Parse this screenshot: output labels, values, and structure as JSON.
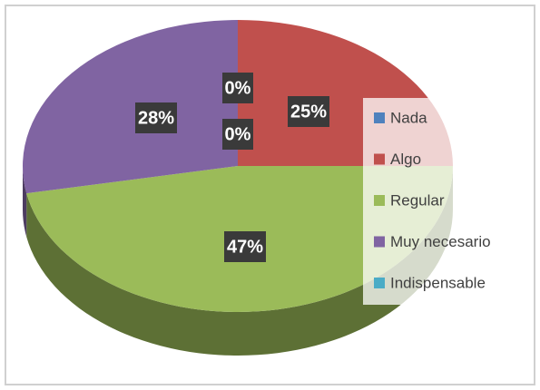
{
  "chart_data": {
    "type": "pie",
    "categories": [
      "Nada",
      "Algo",
      "Regular",
      "Muy necesario",
      "Indispensable"
    ],
    "values": [
      0,
      25,
      47,
      28,
      0
    ],
    "value_labels": [
      "0%",
      "25%",
      "47%",
      "28%",
      "0%"
    ],
    "colors": [
      "#4f81bd",
      "#c0504d",
      "#9bbb59",
      "#8064a2",
      "#4bacc6"
    ],
    "legend": "right"
  }
}
